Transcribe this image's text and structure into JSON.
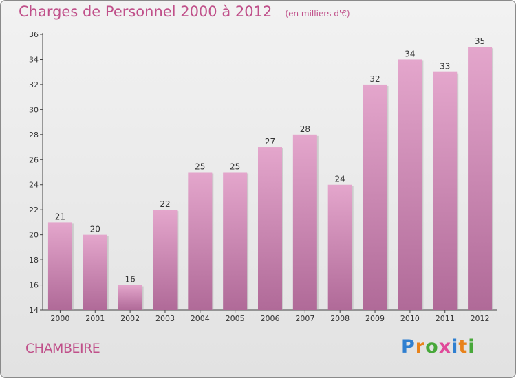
{
  "title": "Charges de Personnel 2000 à 2012",
  "subtitle": "(en milliers d'€)",
  "commune": "CHAMBEIRE",
  "logo": {
    "letters": [
      "P",
      "r",
      "o",
      "x",
      "i",
      "t",
      "i"
    ],
    "colors": [
      "#2f7fd0",
      "#e8821a",
      "#48a83a",
      "#e04a9a",
      "#2f7fd0",
      "#e8821a",
      "#48a83a"
    ]
  },
  "colors": {
    "bar_top": "#e4a6cc",
    "bar_bottom": "#b06a98",
    "accent": "#c0508a"
  },
  "chart_data": {
    "type": "bar",
    "categories": [
      "2000",
      "2001",
      "2002",
      "2003",
      "2004",
      "2005",
      "2006",
      "2007",
      "2008",
      "2009",
      "2010",
      "2011",
      "2012"
    ],
    "values": [
      21,
      20,
      16,
      22,
      25,
      25,
      27,
      28,
      24,
      32,
      34,
      33,
      35
    ],
    "data_labels": [
      "21",
      "20",
      "16",
      "22",
      "25",
      "25",
      "27",
      "28",
      "24",
      "32",
      "34",
      "33",
      "35"
    ],
    "yticks": [
      "14",
      "16",
      "18",
      "20",
      "22",
      "24",
      "26",
      "28",
      "30",
      "32",
      "34",
      "36"
    ],
    "ylim": [
      14,
      36
    ],
    "grid": false
  }
}
